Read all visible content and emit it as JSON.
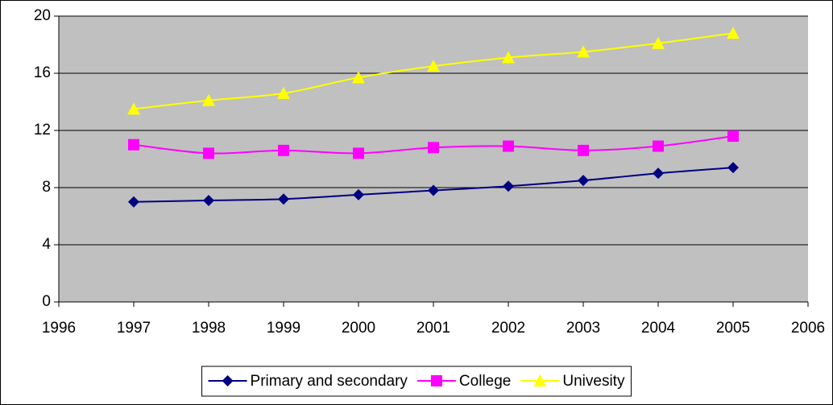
{
  "chart_data": {
    "type": "line",
    "smooth": true,
    "plot_background": "#c0c0c0",
    "grid": true,
    "xlim": [
      1996,
      2006
    ],
    "xticks": [
      1996,
      1997,
      1998,
      1999,
      2000,
      2001,
      2002,
      2003,
      2004,
      2005,
      2006
    ],
    "ylim": [
      0,
      20
    ],
    "yticks": [
      0,
      4,
      8,
      12,
      16,
      20
    ],
    "x": [
      1997,
      1998,
      1999,
      2000,
      2001,
      2002,
      2003,
      2004,
      2005
    ],
    "legend": "bottom",
    "series": [
      {
        "name": "Primary and secondary",
        "color": "#000080",
        "marker": "diamond",
        "values": [
          7.0,
          7.1,
          7.2,
          7.5,
          7.8,
          8.1,
          8.5,
          9.0,
          9.4
        ]
      },
      {
        "name": "College",
        "color": "#ff00ff",
        "marker": "square",
        "values": [
          11.0,
          10.4,
          10.6,
          10.4,
          10.8,
          10.9,
          10.6,
          10.9,
          11.6
        ]
      },
      {
        "name": "Univesity",
        "color": "#ffff00",
        "marker": "triangle",
        "values": [
          13.5,
          14.1,
          14.6,
          15.7,
          16.5,
          17.1,
          17.5,
          18.1,
          18.8
        ]
      }
    ]
  }
}
